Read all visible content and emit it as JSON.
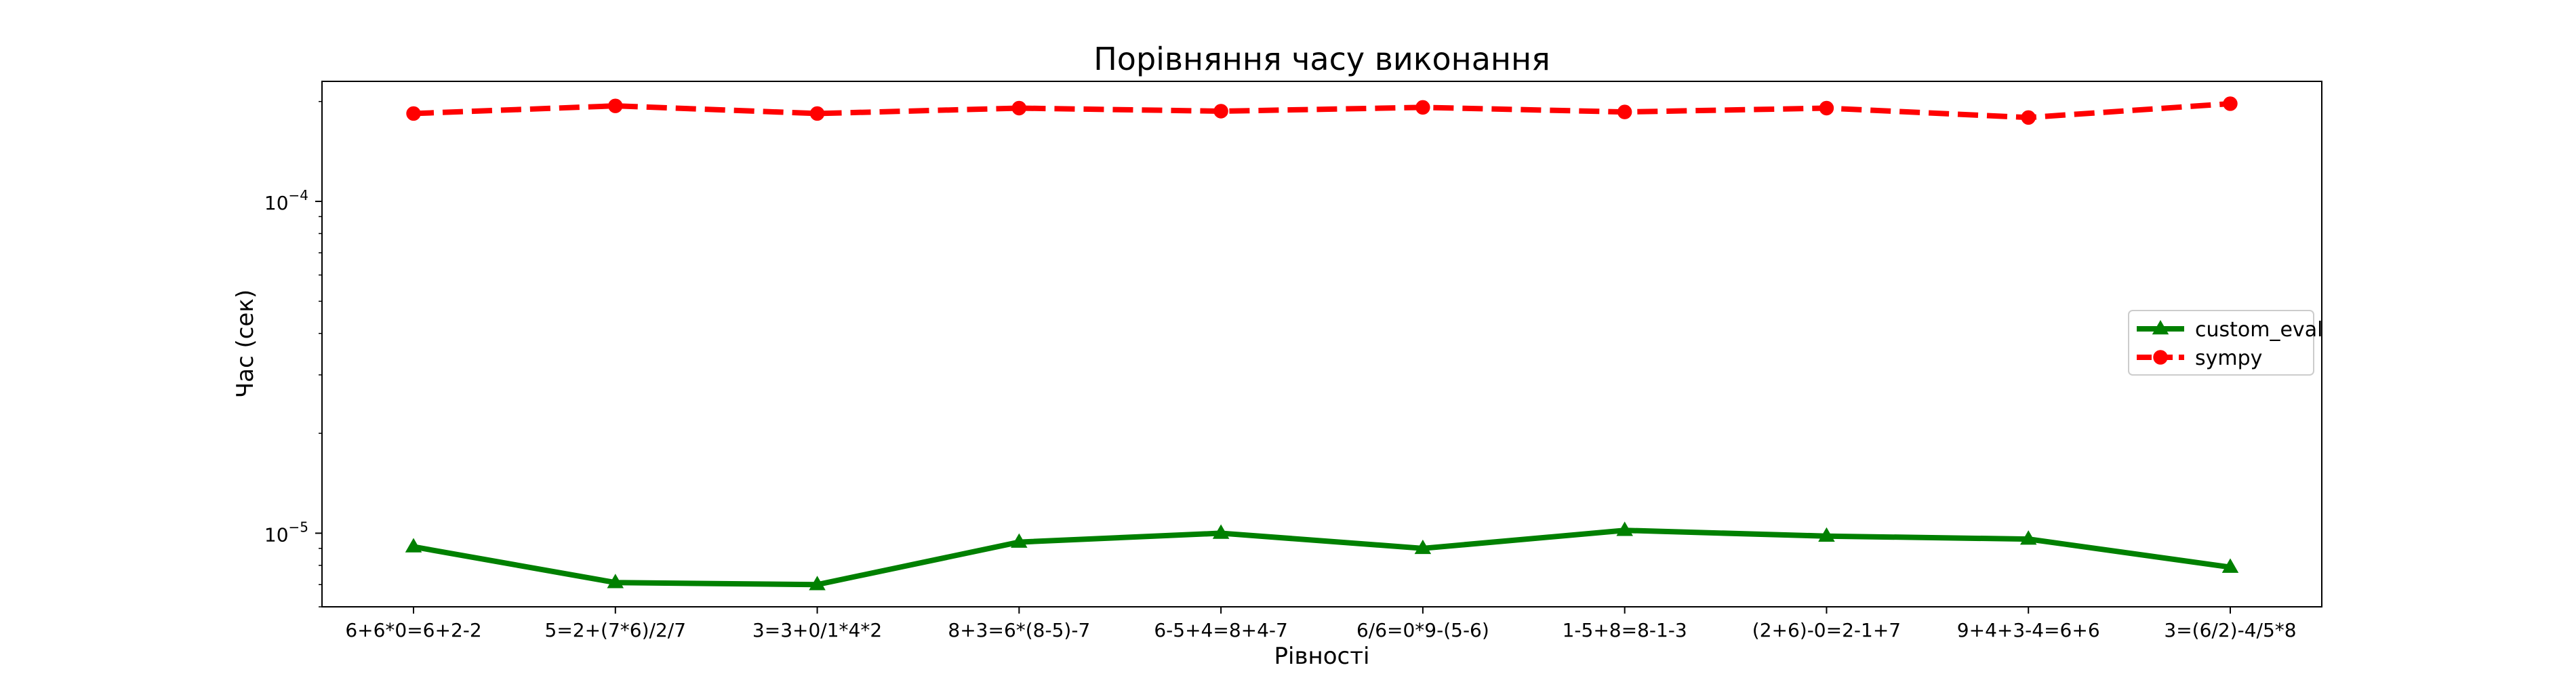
{
  "chart_data": {
    "type": "line",
    "title": "Порівняння часу виконання",
    "xlabel": "Рівності",
    "ylabel": "Час (сек)",
    "yscale": "log",
    "ylim": [
      6e-06,
      0.00023
    ],
    "categories": [
      "6+6*0=6+2-2",
      "5=2+(7*6)/2/7",
      "3=3+0/1*4*2",
      "8+3=6*(8-5)-7",
      "6-5+4=8+4-7",
      "6/6=0*9-(5-6)",
      "1-5+8=8-1-3",
      "(2+6)-0=2-1+7",
      "9+4+3-4=6+6",
      "3=(6/2)-4/5*8"
    ],
    "y_tick_labels": [
      {
        "value": 1e-05,
        "base": "10",
        "exp": "−5"
      },
      {
        "value": 0.0001,
        "base": "10",
        "exp": "−4"
      }
    ],
    "series": [
      {
        "name": "custom_eval",
        "color": "#008000",
        "marker": "triangle",
        "linestyle": "solid",
        "values": [
          9.1e-06,
          7.1e-06,
          7e-06,
          9.4e-06,
          1e-05,
          9e-06,
          1.02e-05,
          9.8e-06,
          9.6e-06,
          7.9e-06
        ]
      },
      {
        "name": "sympy",
        "color": "#ff0000",
        "marker": "circle",
        "linestyle": "dashed",
        "values": [
          0.000184,
          0.000194,
          0.000184,
          0.000191,
          0.000187,
          0.000192,
          0.000186,
          0.000191,
          0.000179,
          0.000197
        ]
      }
    ],
    "legend_position": "center-right",
    "grid": false
  }
}
